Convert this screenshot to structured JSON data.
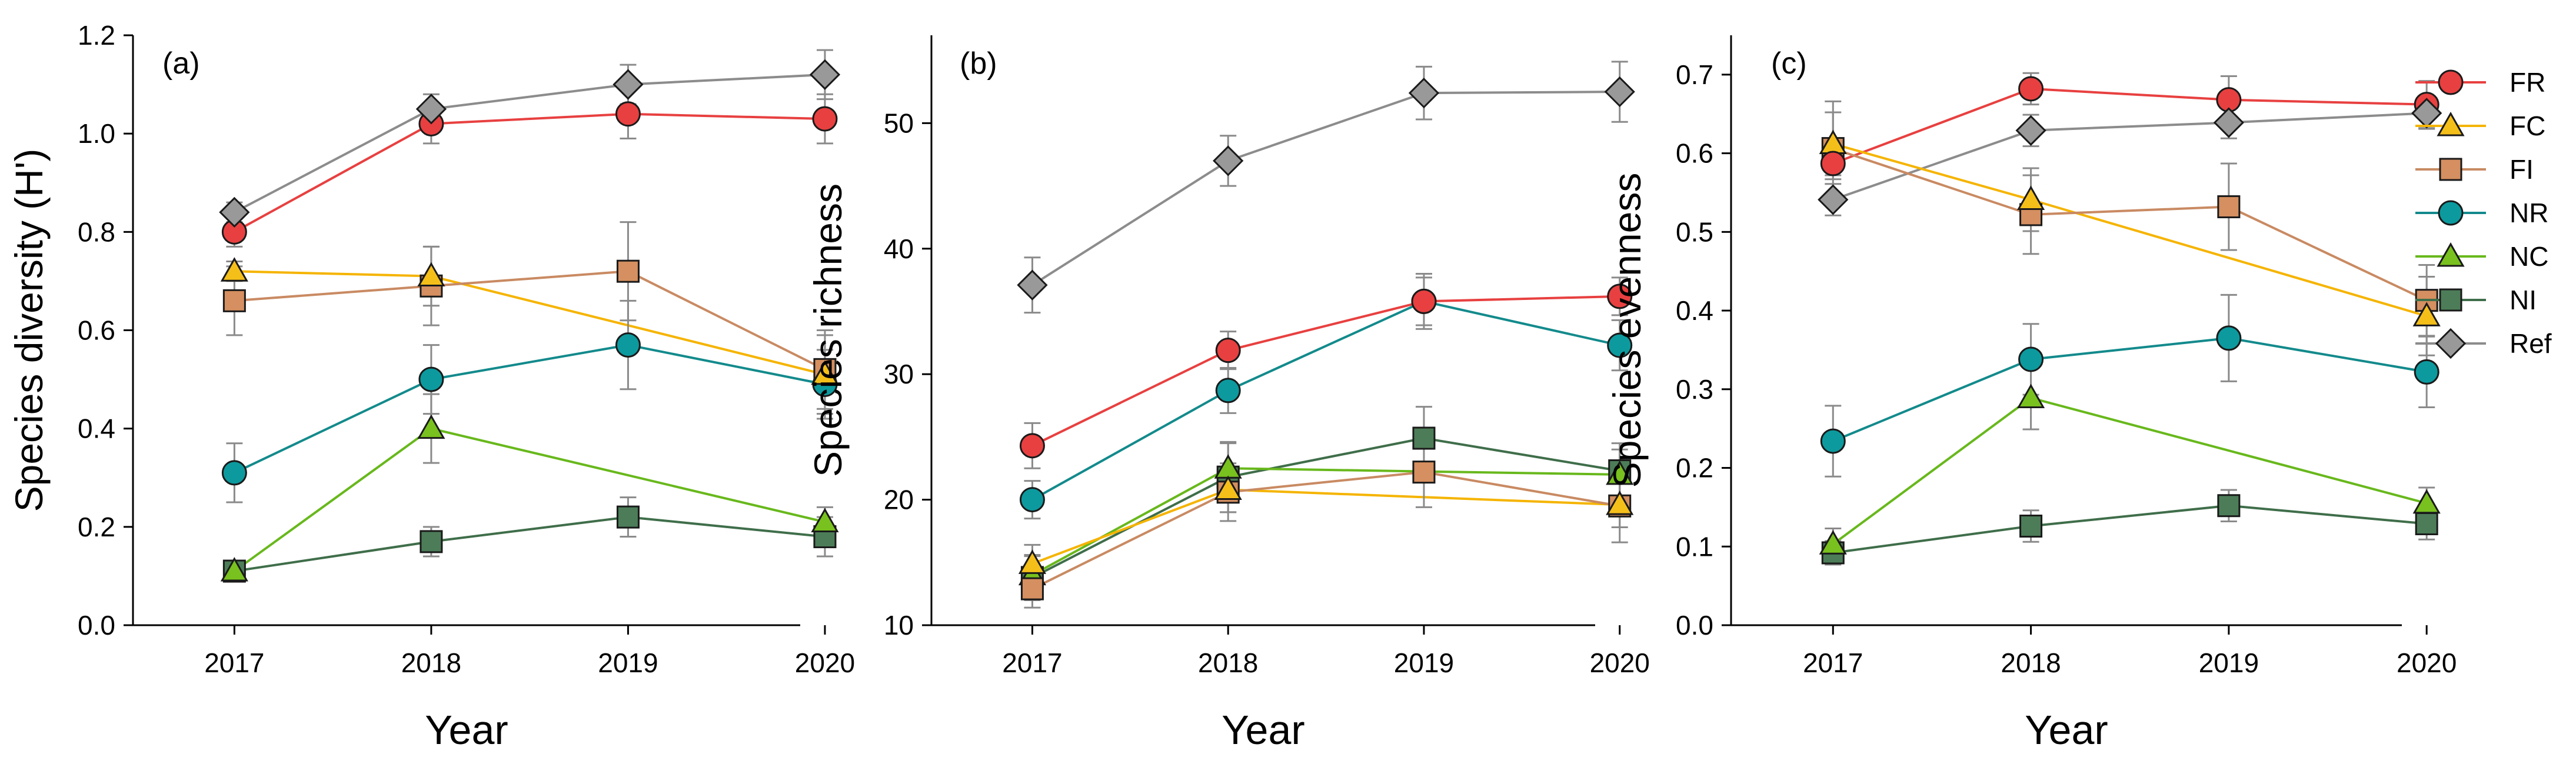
{
  "figure": {
    "x_title": "Year",
    "colors": {
      "FR": "#e84040",
      "FC": "#f5bf1a",
      "FI": "#d58f60",
      "NR": "#0c9a9e",
      "NC": "#79c11e",
      "NI": "#4c7d58",
      "Ref": "#999999"
    },
    "line_colors": {
      "FR": "#e84040",
      "FC": "#f5b400",
      "FI": "#c98a62",
      "NR": "#138a8c",
      "NC": "#68b81c",
      "NI": "#3f6e4a",
      "Ref": "#8c8c8c"
    },
    "error_bar_color": "#8a8a8a"
  },
  "legend": {
    "placement": "right",
    "items": [
      {
        "key": "FR",
        "label": "FR",
        "marker": "circle"
      },
      {
        "key": "FC",
        "label": "FC",
        "marker": "triangle"
      },
      {
        "key": "FI",
        "label": "FI",
        "marker": "square"
      },
      {
        "key": "NR",
        "label": "NR",
        "marker": "circle"
      },
      {
        "key": "NC",
        "label": "NC",
        "marker": "triangle"
      },
      {
        "key": "NI",
        "label": "NI",
        "marker": "square"
      },
      {
        "key": "Ref",
        "label": "Ref",
        "marker": "diamond"
      }
    ]
  },
  "chart_data": [
    {
      "type": "line",
      "panel_label": "(a)",
      "title": "",
      "xlabel": "Year",
      "ylabel": "Species diversity (H')",
      "categories": [
        "2017",
        "2018",
        "2019",
        "2020"
      ],
      "ylim": [
        0.0,
        1.2
      ],
      "yticks": [
        0.0,
        0.2,
        0.4,
        0.6,
        0.8,
        1.0,
        1.2
      ],
      "ytick_labels": [
        "0.0",
        "0.2",
        "0.4",
        "0.6",
        "0.8",
        "1.0",
        "1.2"
      ],
      "series": [
        {
          "name": "Ref",
          "values": [
            0.84,
            1.05,
            1.1,
            1.12
          ],
          "err": [
            0.02,
            0.03,
            0.04,
            0.05
          ]
        },
        {
          "name": "FR",
          "values": [
            0.8,
            1.02,
            1.04,
            1.03
          ],
          "err": [
            0.03,
            0.04,
            0.05,
            0.05
          ]
        },
        {
          "name": "FC",
          "values": [
            0.72,
            0.71,
            null,
            0.51
          ],
          "err": [
            0.02,
            0.06,
            null,
            0.08
          ]
        },
        {
          "name": "FI",
          "values": [
            0.66,
            0.69,
            0.72,
            0.52
          ],
          "err": [
            0.07,
            0.08,
            0.1,
            0.08
          ]
        },
        {
          "name": "NR",
          "values": [
            0.31,
            0.5,
            0.57,
            0.49
          ],
          "err": [
            0.06,
            0.07,
            0.09,
            0.07
          ]
        },
        {
          "name": "NC",
          "values": [
            0.11,
            0.4,
            null,
            0.21
          ],
          "err": [
            0.02,
            0.07,
            null,
            0.03
          ]
        },
        {
          "name": "NI",
          "values": [
            0.11,
            0.17,
            0.22,
            0.18
          ],
          "err": [
            0.02,
            0.03,
            0.04,
            0.04
          ]
        }
      ]
    },
    {
      "type": "line",
      "panel_label": "(b)",
      "title": "",
      "xlabel": "Year",
      "ylabel": "Species richness",
      "categories": [
        "2017",
        "2018",
        "2019",
        "2020"
      ],
      "ylim": [
        10,
        57
      ],
      "yticks": [
        10,
        20,
        30,
        40,
        50
      ],
      "ytick_labels": [
        "10",
        "20",
        "30",
        "40",
        "50"
      ],
      "series": [
        {
          "name": "Ref",
          "values": [
            37.1,
            47.0,
            52.4,
            52.5
          ],
          "err": [
            2.2,
            2.0,
            2.1,
            2.4
          ]
        },
        {
          "name": "FR",
          "values": [
            24.3,
            31.9,
            35.8,
            36.2
          ],
          "err": [
            1.8,
            1.5,
            2.2,
            1.5
          ]
        },
        {
          "name": "NR",
          "values": [
            20.0,
            28.7,
            35.8,
            32.3
          ],
          "err": [
            1.5,
            1.8,
            1.9,
            2.0
          ]
        },
        {
          "name": "NI",
          "values": [
            13.8,
            21.8,
            24.9,
            22.3
          ],
          "err": [
            1.8,
            2.8,
            2.5,
            2.2
          ]
        },
        {
          "name": "NC",
          "values": [
            14.0,
            22.5,
            null,
            22.0
          ],
          "err": [
            1.5,
            2.0,
            null,
            2.0
          ]
        },
        {
          "name": "FC",
          "values": [
            14.9,
            20.8,
            null,
            19.6
          ],
          "err": [
            1.5,
            1.8,
            null,
            1.8
          ]
        },
        {
          "name": "FI",
          "values": [
            12.9,
            20.6,
            22.2,
            19.5
          ],
          "err": [
            1.5,
            2.3,
            2.8,
            2.9
          ]
        }
      ]
    },
    {
      "type": "line",
      "panel_label": "(c)",
      "title": "",
      "xlabel": "Year",
      "ylabel": "Species evenness",
      "categories": [
        "2017",
        "2018",
        "2019",
        "2020"
      ],
      "ylim": [
        0.0,
        0.75
      ],
      "yticks": [
        0.0,
        0.1,
        0.2,
        0.3,
        0.4,
        0.5,
        0.6,
        0.7
      ],
      "ytick_labels": [
        "0.0",
        "0.1",
        "0.2",
        "0.3",
        "0.4",
        "0.5",
        "0.6",
        "0.7"
      ],
      "series": [
        {
          "name": "FR",
          "values": [
            0.587,
            0.682,
            0.668,
            0.662
          ],
          "err": [
            0.02,
            0.02,
            0.03,
            0.03
          ]
        },
        {
          "name": "Ref",
          "values": [
            0.541,
            0.629,
            0.639,
            0.651
          ],
          "err": [
            0.02,
            0.02,
            0.02,
            0.02
          ]
        },
        {
          "name": "FC",
          "values": [
            0.612,
            0.541,
            null,
            0.393
          ],
          "err": [
            0.04,
            0.04,
            null,
            0.05
          ]
        },
        {
          "name": "FI",
          "values": [
            0.606,
            0.522,
            0.532,
            0.413
          ],
          "err": [
            0.06,
            0.05,
            0.055,
            0.045
          ]
        },
        {
          "name": "NR",
          "values": [
            0.234,
            0.338,
            0.365,
            0.322
          ],
          "err": [
            0.045,
            0.045,
            0.055,
            0.045
          ]
        },
        {
          "name": "NC",
          "values": [
            0.103,
            0.289,
            null,
            0.155
          ],
          "err": [
            0.02,
            0.04,
            null,
            0.02
          ]
        },
        {
          "name": "NI",
          "values": [
            0.092,
            0.126,
            0.152,
            0.129
          ],
          "err": [
            0.015,
            0.02,
            0.02,
            0.02
          ]
        }
      ]
    }
  ]
}
